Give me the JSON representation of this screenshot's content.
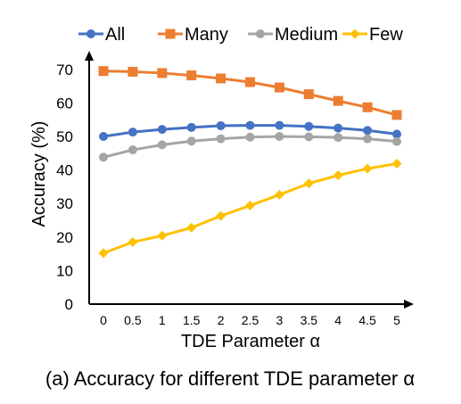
{
  "chart_data": {
    "type": "line",
    "x": [
      0,
      0.5,
      1,
      1.5,
      2,
      2.5,
      3,
      3.5,
      4,
      4.5,
      5
    ],
    "x_tick_labels": [
      "0",
      "0.5",
      "1",
      "1.5",
      "2",
      "2.5",
      "3",
      "3.5",
      "4",
      "4.5",
      "5"
    ],
    "series": [
      {
        "name": "All",
        "color": "#4472C4",
        "marker": "circle",
        "values": [
          50.0,
          51.3,
          52.1,
          52.7,
          53.2,
          53.3,
          53.3,
          53.0,
          52.5,
          51.8,
          50.7
        ]
      },
      {
        "name": "Many",
        "color": "#ED7D31",
        "marker": "square",
        "values": [
          69.5,
          69.3,
          68.9,
          68.2,
          67.3,
          66.2,
          64.6,
          62.6,
          60.6,
          58.7,
          56.4
        ]
      },
      {
        "name": "Medium",
        "color": "#A5A5A5",
        "marker": "circle",
        "values": [
          43.8,
          46.0,
          47.5,
          48.6,
          49.3,
          49.8,
          50.0,
          49.9,
          49.7,
          49.3,
          48.5
        ]
      },
      {
        "name": "Few",
        "color": "#FFC000",
        "marker": "diamond",
        "values": [
          15.2,
          18.5,
          20.4,
          22.8,
          26.3,
          29.4,
          32.6,
          36.0,
          38.4,
          40.4,
          41.9
        ]
      }
    ],
    "ylim": [
      0,
      70
    ],
    "y_ticks": [
      0,
      10,
      20,
      30,
      40,
      50,
      60,
      70
    ],
    "xlabel": "TDE Parameter α",
    "ylabel": "Accuracy (%)",
    "legend_position": "top",
    "grid": false
  },
  "caption": "(a) Accuracy for different TDE parameter α"
}
